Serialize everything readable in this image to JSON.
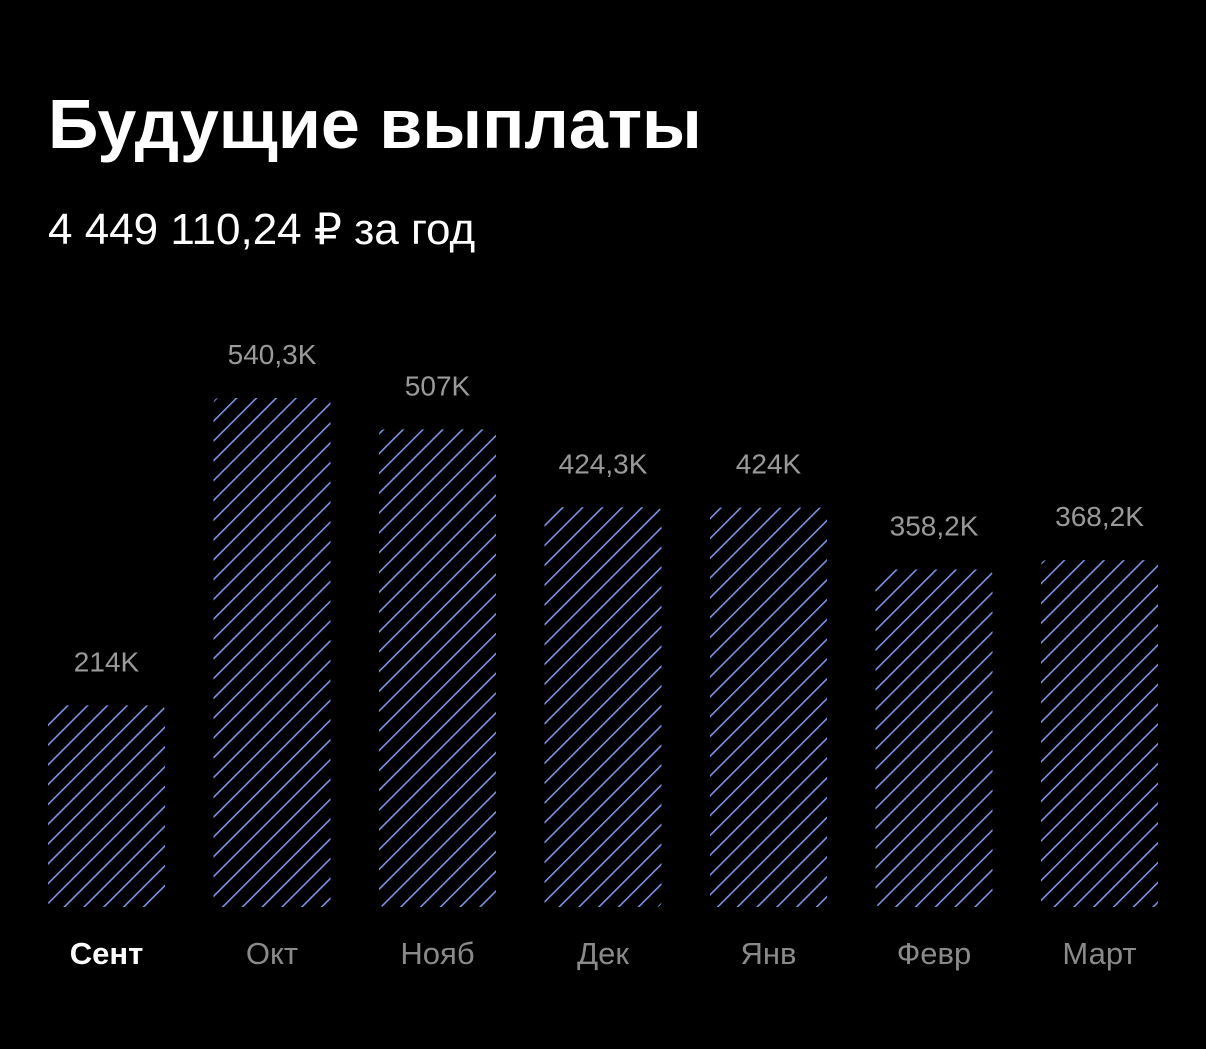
{
  "chart_data": {
    "type": "bar",
    "title": "Будущие выплаты",
    "subtitle": "4 449 110,24 ₽ за год",
    "categories": [
      "Сент",
      "Окт",
      "Нояб",
      "Дек",
      "Янв",
      "Февр",
      "Март"
    ],
    "values": [
      214,
      540.3,
      507,
      424.3,
      424,
      358.2,
      368.2
    ],
    "value_labels": [
      "214K",
      "540,3K",
      "507K",
      "424,3K",
      "424K",
      "358,2K",
      "368,2K"
    ],
    "color": "#7f93e6",
    "selected_index": 0
  }
}
